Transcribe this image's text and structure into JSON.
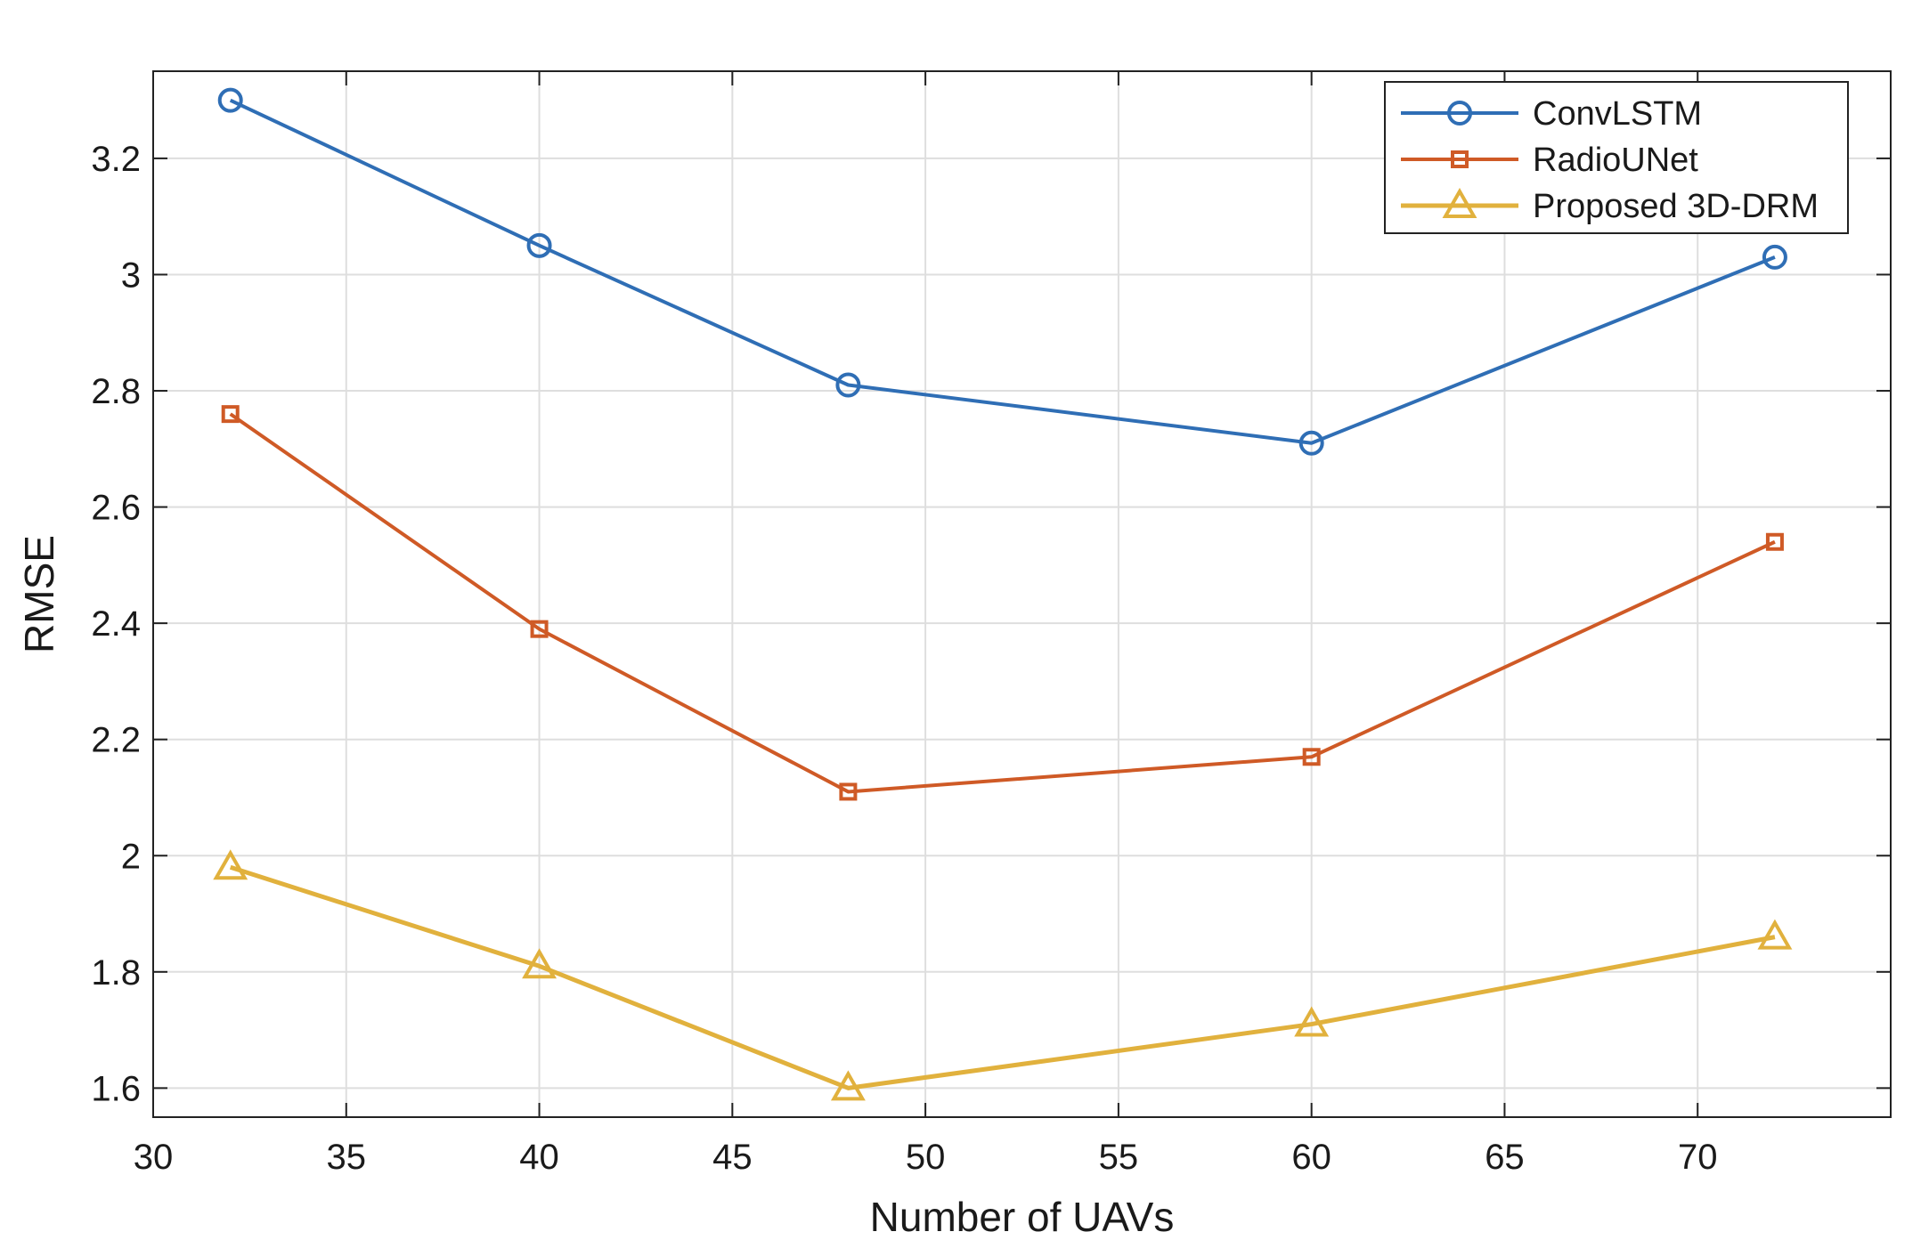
{
  "chart_data": {
    "type": "line",
    "title": "",
    "xlabel": "Number of UAVs",
    "ylabel": "RMSE",
    "xlim": [
      30,
      75
    ],
    "ylim": [
      1.55,
      3.35
    ],
    "xticks": [
      30,
      35,
      40,
      45,
      50,
      55,
      60,
      65,
      70
    ],
    "xtick_labels": [
      "30",
      "35",
      "40",
      "45",
      "50",
      "55",
      "60",
      "65",
      "70"
    ],
    "yticks": [
      1.6,
      1.8,
      2.0,
      2.2,
      2.4,
      2.6,
      2.8,
      3.0,
      3.2
    ],
    "ytick_labels": [
      "1.6",
      "1.8",
      "2",
      "2.2",
      "2.4",
      "2.6",
      "2.8",
      "3",
      "3.2"
    ],
    "grid": true,
    "legend_position": "top-right",
    "x": [
      32,
      40,
      48,
      60,
      72
    ],
    "series": [
      {
        "name": "ConvLSTM",
        "marker": "circle",
        "color": "#2f6eb5",
        "values": [
          3.3,
          3.05,
          2.81,
          2.71,
          3.03
        ]
      },
      {
        "name": "RadioUNet",
        "marker": "square",
        "color": "#cf5a26",
        "values": [
          2.76,
          2.39,
          2.11,
          2.17,
          2.54
        ]
      },
      {
        "name": "Proposed 3D-DRM",
        "marker": "triangle",
        "color": "#e1b13d",
        "values": [
          1.98,
          1.81,
          1.6,
          1.71,
          1.86
        ]
      }
    ]
  }
}
